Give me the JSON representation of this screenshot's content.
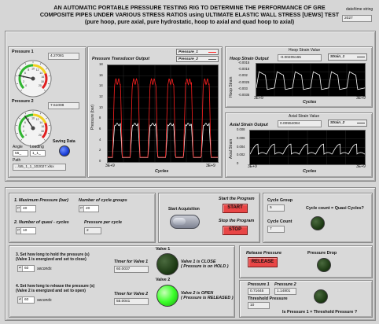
{
  "header": {
    "line1": "AN AUTOMATIC PORTABLE PRESSURE TESTING RIG TO DETERMINE THE PERFORMANCE OF GRE",
    "line2": "COMPOSITE PIPES UNDER VARIOUS STRESS RATIOS using ULTIMATE ELASTIC WALL STRESS [UEWS] TEST",
    "line3": "(pure hoop, pure axial, pure hydrostatic, hoop to axial and quad hoop to axial)",
    "date_label": "date/time string",
    "date_value": "2027"
  },
  "gauges": {
    "pressure1_label": "Pressure 1",
    "pressure1_value": "4.27081",
    "pressure1_level": 4.27,
    "pressure2_label": "Pressure 2",
    "pressure2_value": "7.51008",
    "pressure2_level": 7.51,
    "ticks": [
      "0",
      "2",
      "4",
      "6",
      "8",
      "10",
      "12",
      "14",
      "16",
      "18",
      "20"
    ],
    "saving_label": "Saving Data",
    "angle_label": "Angle",
    "angle_value": "55_",
    "loading_label": "Loading",
    "loading_value": "1_1_",
    "path_label": "Path",
    "path_value": "...\\55_1_1_102027.xlsx"
  },
  "pressure_chart": {
    "title": "Pressure  Transducer Output",
    "legend": [
      "Pressure_1",
      "Pressure_2"
    ],
    "ylabel": "Pressure (bar)",
    "xlabel": "Cycles",
    "yticks": [
      "18",
      "16",
      "14",
      "12",
      "10",
      "8",
      "6",
      "4",
      "2",
      "0"
    ],
    "xtick_left": "3E+9",
    "xtick_right": "3E+9"
  },
  "hoop_chart": {
    "value_label": "Hoop Strain Value",
    "title": "Hoop Strain Output",
    "value": "-0.00205165",
    "legend": "Strain_1",
    "ylabel": "Hoop Strain",
    "xlabel": "Cycles",
    "yticks": [
      "-0.0015",
      "-0.0016",
      "-0.002",
      "-0.0025",
      "-0.003",
      "-0.0035"
    ],
    "xtick_left": "3E+9",
    "xtick_right": "3E+9"
  },
  "axial_chart": {
    "value_label": "Axial Strain Value",
    "title": "Axial Strain Output",
    "value": "0.00554084",
    "legend": "Strain_2",
    "ylabel": "Axial Strain",
    "xlabel": "Cycles",
    "yticks": [
      "0.008",
      "0.006",
      "0.004",
      "0.002",
      "0"
    ],
    "xtick_left": "3E+9",
    "xtick_right": "3E+9"
  },
  "settings": {
    "max_pressure_label": "1. Maximum Pressure (bar)",
    "max_pressure_value": "40",
    "cycle_groups_label": "Number of cycle groups",
    "cycle_groups_value": "20",
    "quasi_label": "2. Number of quasi - cycles",
    "quasi_value": "10",
    "per_cycle_label": "Pressure per cycle",
    "per_cycle_value": "2"
  },
  "acquisition": {
    "start_label": "Start Acquisition",
    "start_program_label": "Start the Program",
    "start_button": "START",
    "stop_program_label": "Stop the Program",
    "stop_button": "STOP"
  },
  "cycle_panel": {
    "group_label": "Cycle Group",
    "group_value": "5",
    "count_label": "Cycle Count",
    "count_value": "7",
    "question": "Cycle count = Quasi Cycles?"
  },
  "timers": {
    "hold_label_1": "3. Set how long to hold the pressure (s)",
    "hold_label_2": "(Valve 1 is energized and set to close)",
    "hold_value": "60",
    "hold_unit": "seconds",
    "release_label_1": "4. Set how long to release the pressure (s)",
    "release_label_2": "(Valve 2 is energized and set to open)",
    "release_value": "60",
    "release_unit": "seconds",
    "timer1_label": "Timer for Valve 1",
    "timer1_value": "60.0037",
    "timer2_label": "Timer for Valve 2",
    "timer2_value": "55.0041",
    "valve1_label": "Valve 1",
    "valve1_status_1": "Valve 1 is CLOSE",
    "valve1_status_2": "( Pressure is on HOLD )",
    "valve2_label": "Valve 2",
    "valve2_status_1": "Valve 2 is OPEN",
    "valve2_status_2": "( Pressure is RELEASED )"
  },
  "release_panel": {
    "label": "Release Pressure",
    "button": "RELEASE",
    "drop_label": "Pressure Drop"
  },
  "threshold_panel": {
    "p1_label": "Pressure 1",
    "p1_value": "0.71645",
    "p2_label": "Pressure 2",
    "p2_value": "1.14801",
    "threshold_label": "Threshold Pressure",
    "threshold_value": "10",
    "question": "Is Pressure 1 = Threshold Pressure ?"
  },
  "colors": {
    "led_dark": "#1d3a14",
    "led_on": "#3cff2a",
    "button_red": "#e84646",
    "saving_led": "#1a3fd8",
    "pressure1_trace": "#ff2020",
    "pressure2_trace": "#ffffff"
  }
}
